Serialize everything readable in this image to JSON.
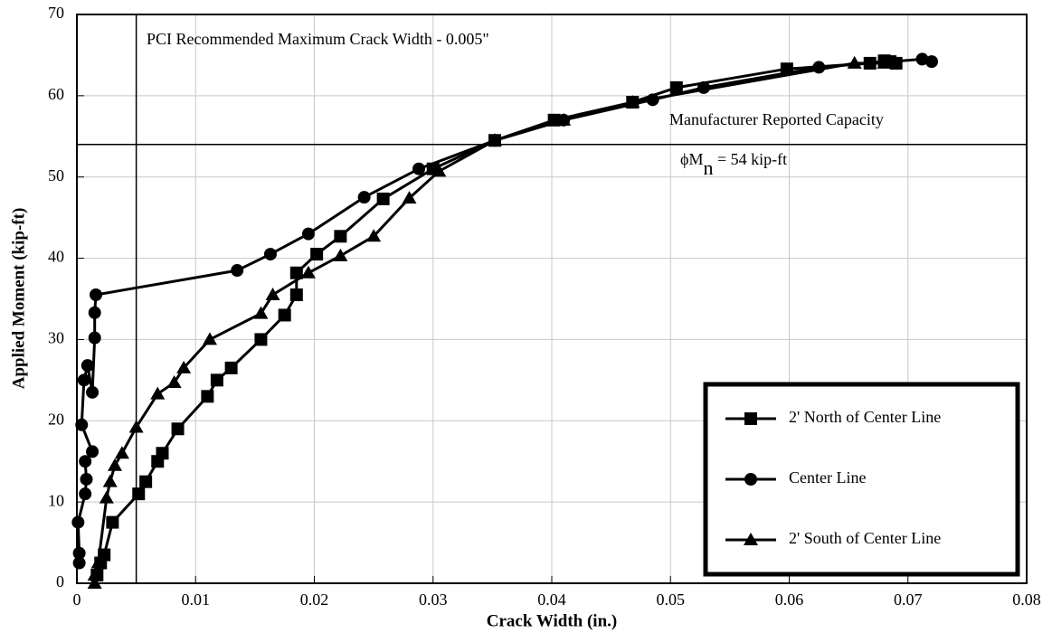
{
  "chart_data": {
    "type": "line",
    "xlabel": "Crack Width (in.)",
    "ylabel": "Applied Moment (kip-ft)",
    "xlim": [
      0,
      0.08
    ],
    "xticks": [
      0,
      0.01,
      0.02,
      0.03,
      0.04,
      0.05,
      0.06,
      0.07,
      0.08
    ],
    "ylim": [
      0,
      70
    ],
    "yticks": [
      0,
      10,
      20,
      30,
      40,
      50,
      60,
      70
    ],
    "grid": true,
    "legend": "lower right",
    "vlines": [
      0.005
    ],
    "hlines": [
      54
    ],
    "annotations": {
      "pci": "PCI Recommended Maximum Crack Width - 0.005\"",
      "capacity": "Manufacturer Reported Capacity",
      "phi_m": "ϕM",
      "phi_sub": "n",
      "phi_rest": " = 54 kip-ft"
    },
    "series": [
      {
        "name": "2' North of Center Line",
        "color": "#000000",
        "marker": "square",
        "x": [
          0.0017,
          0.002,
          0.0023,
          0.003,
          0.0052,
          0.0058,
          0.0068,
          0.0072,
          0.0085,
          0.011,
          0.0118,
          0.013,
          0.0155,
          0.0175,
          0.0185,
          0.0185,
          0.0202,
          0.0222,
          0.0258,
          0.03,
          0.0352,
          0.0402,
          0.0468,
          0.0505,
          0.0598,
          0.0668,
          0.068,
          0.0685,
          0.069
        ],
        "values": [
          1,
          2.5,
          3.5,
          7.5,
          11,
          12.5,
          15,
          16,
          19,
          23,
          25,
          26.5,
          30,
          33,
          35.5,
          38.2,
          40.5,
          42.7,
          47.3,
          51,
          54.5,
          57,
          59.2,
          61,
          63.3,
          64,
          64.3,
          64.2,
          64
        ]
      },
      {
        "name": "Center Line",
        "color": "#000000",
        "marker": "circle",
        "x": [
          0.0002,
          0.0002,
          0.0001,
          0.0007,
          0.0008,
          0.0007,
          0.0013,
          0.0004,
          0.0006,
          0.0009,
          0.0013,
          0.0015,
          0.0015,
          0.0016,
          0.0135,
          0.0163,
          0.0195,
          0.0242,
          0.0288,
          0.0352,
          0.041,
          0.0485,
          0.0528,
          0.0625,
          0.0712,
          0.072
        ],
        "values": [
          2.5,
          3.7,
          7.5,
          11,
          12.8,
          15,
          16.2,
          19.5,
          25,
          26.8,
          23.5,
          30.2,
          33.3,
          35.5,
          38.5,
          40.5,
          43,
          47.5,
          51,
          54.5,
          57,
          59.5,
          61,
          63.5,
          64.5,
          64.2
        ]
      },
      {
        "name": "2' South of Center Line",
        "color": "#000000",
        "marker": "triangle",
        "x": [
          0.0015,
          0.0015,
          0.0018,
          0.0025,
          0.0028,
          0.0032,
          0.0038,
          0.005,
          0.0068,
          0.0082,
          0.009,
          0.0112,
          0.0155,
          0.0165,
          0.0195,
          0.0222,
          0.025,
          0.028,
          0.0305,
          0.0352,
          0.041,
          0.0468,
          0.0655,
          0.068
        ],
        "values": [
          0,
          1,
          2.5,
          10.5,
          12.5,
          14.5,
          16,
          19.2,
          23.3,
          24.7,
          26.5,
          30,
          33.2,
          35.5,
          38.2,
          40.3,
          42.7,
          47.4,
          50.7,
          54.5,
          57,
          59.2,
          64,
          64
        ]
      }
    ]
  }
}
